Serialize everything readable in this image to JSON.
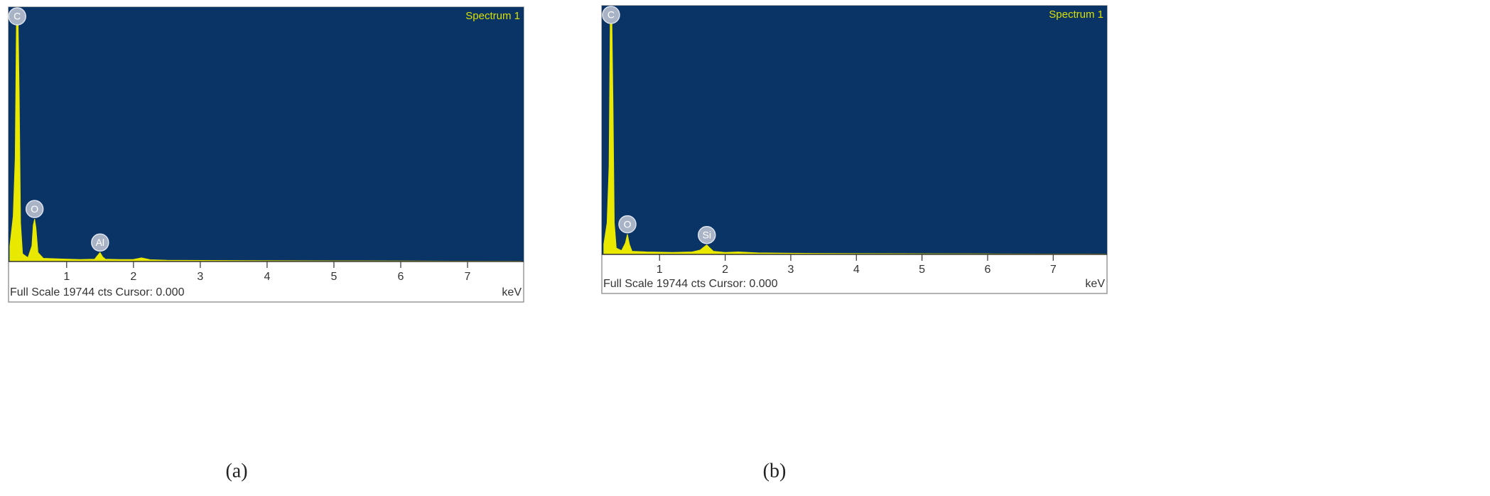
{
  "chart_data": [
    {
      "type": "area",
      "title": "Spectrum 1",
      "caption": "(a)",
      "footer": "Full Scale 19744 cts Cursor: 0.000",
      "xlabel": "keV",
      "color": "#e8e800",
      "background": "#0a3366",
      "xlim": [
        0.13,
        7.84
      ],
      "xticks": [
        1,
        2,
        3,
        4,
        5,
        6,
        7
      ],
      "ylim": [
        0,
        19744
      ],
      "x": [
        0.15,
        0.2,
        0.23,
        0.25,
        0.27,
        0.29,
        0.31,
        0.34,
        0.42,
        0.48,
        0.5,
        0.52,
        0.54,
        0.57,
        0.65,
        0.9,
        1.2,
        1.42,
        1.46,
        1.5,
        1.54,
        1.58,
        1.8,
        2.0,
        2.12,
        2.25,
        2.5,
        3,
        4,
        5,
        6,
        7,
        7.8
      ],
      "values": [
        1200,
        3500,
        8000,
        19500,
        19500,
        13000,
        3000,
        600,
        300,
        1200,
        2800,
        3300,
        2600,
        700,
        250,
        200,
        150,
        180,
        450,
        700,
        350,
        180,
        150,
        160,
        280,
        140,
        100,
        80,
        60,
        50,
        40,
        30,
        20
      ],
      "annotations": [
        {
          "text": "C",
          "x": 0.26
        },
        {
          "text": "O",
          "x": 0.52
        },
        {
          "text": "Al",
          "x": 1.5
        }
      ]
    },
    {
      "type": "area",
      "title": "Spectrum 1",
      "caption": "(b)",
      "footer": "Full Scale 19744 cts Cursor: 0.000",
      "xlabel": "keV",
      "color": "#e8e800",
      "background": "#0a3366",
      "xlim": [
        0.12,
        7.82
      ],
      "xticks": [
        1,
        2,
        3,
        4,
        5,
        6,
        7
      ],
      "ylim": [
        0,
        19744
      ],
      "x": [
        0.15,
        0.2,
        0.23,
        0.25,
        0.27,
        0.29,
        0.31,
        0.34,
        0.42,
        0.48,
        0.51,
        0.54,
        0.58,
        0.8,
        1.2,
        1.5,
        1.62,
        1.68,
        1.72,
        1.76,
        1.82,
        2.0,
        2.2,
        2.5,
        3,
        4,
        5,
        6,
        7,
        7.8
      ],
      "values": [
        800,
        2500,
        7000,
        19500,
        19500,
        12000,
        2500,
        500,
        300,
        900,
        1600,
        800,
        250,
        200,
        150,
        200,
        350,
        600,
        750,
        550,
        250,
        150,
        200,
        120,
        90,
        60,
        50,
        40,
        30,
        20
      ],
      "annotations": [
        {
          "text": "C",
          "x": 0.26
        },
        {
          "text": "O",
          "x": 0.51
        },
        {
          "text": "Si",
          "x": 1.72
        }
      ]
    }
  ]
}
